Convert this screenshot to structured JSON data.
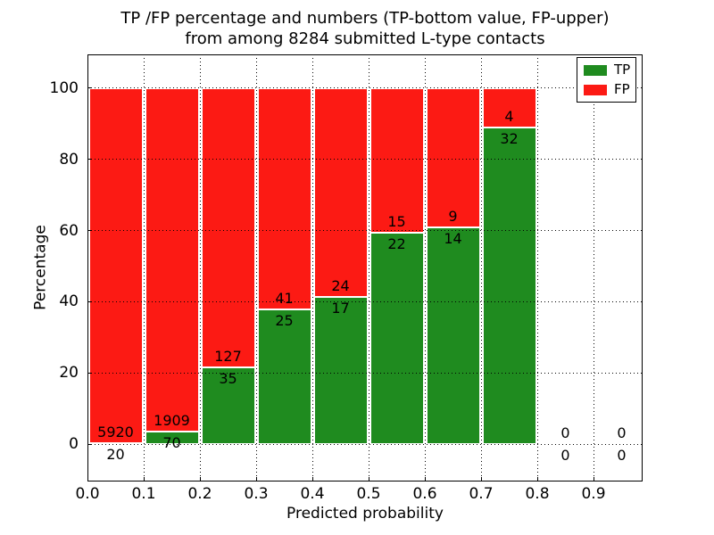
{
  "chart_data": {
    "type": "bar",
    "stacked": true,
    "title_lines": [
      "TP /FP percentage and numbers (TP-bottom value, FP-upper)",
      "from among 8284 submitted L-type contacts"
    ],
    "xlabel": "Predicted probability",
    "ylabel": "Percentage",
    "x_tick_labels": [
      "0.0",
      "0.1",
      "0.2",
      "0.3",
      "0.4",
      "0.5",
      "0.6",
      "0.7",
      "0.8",
      "0.9"
    ],
    "y_ticks": [
      0,
      20,
      40,
      60,
      80,
      100
    ],
    "ylim": [
      -10.5,
      109.5
    ],
    "xlim": [
      0.0,
      0.987
    ],
    "bin_width": 0.1,
    "bin_starts": [
      0.0,
      0.1,
      0.2,
      0.3,
      0.4,
      0.5,
      0.6,
      0.7,
      0.8,
      0.9
    ],
    "series": [
      {
        "name": "TP",
        "color": "#1f8b1f",
        "counts": [
          20,
          70,
          35,
          25,
          17,
          22,
          14,
          32,
          0,
          0
        ]
      },
      {
        "name": "FP",
        "color": "#fc1a14",
        "counts": [
          5920,
          1909,
          127,
          41,
          24,
          15,
          9,
          4,
          0,
          0
        ]
      }
    ],
    "tp_percent_of_bin": [
      0.34,
      3.54,
      21.6,
      37.9,
      41.5,
      59.5,
      60.9,
      88.9,
      0,
      0
    ],
    "grid": true,
    "grid_style": "dotted",
    "legend": {
      "position": "upper right",
      "entries": [
        {
          "label": "TP",
          "color": "#1f8b1f"
        },
        {
          "label": "FP",
          "color": "#fc1a14"
        }
      ]
    }
  }
}
